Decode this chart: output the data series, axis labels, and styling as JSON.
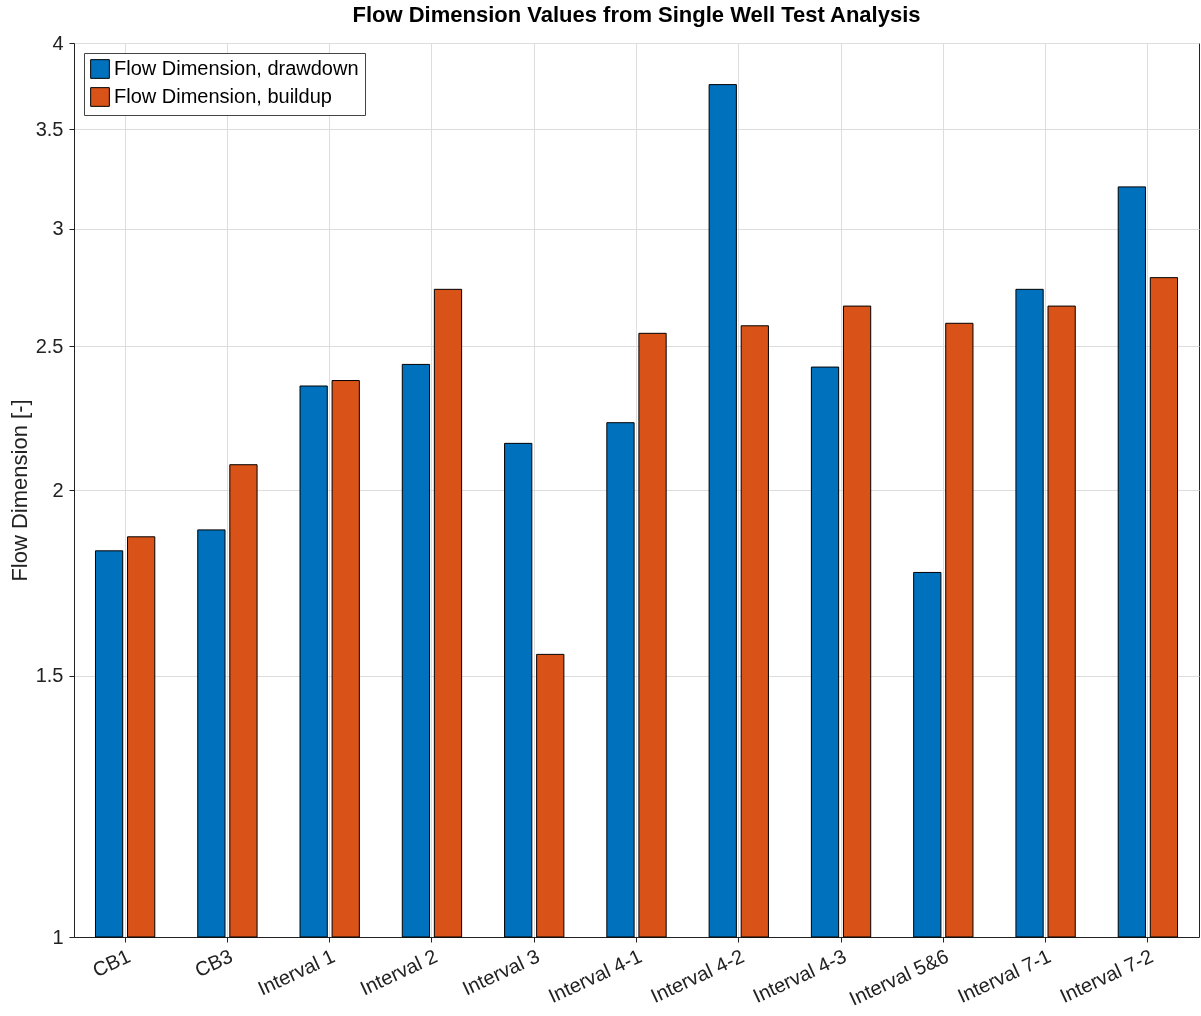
{
  "chart_data": {
    "type": "bar",
    "title": "Flow Dimension Values from Single Well Test Analysis",
    "ylabel": "Flow Dimension [-]",
    "categories": [
      "CB1",
      "CB3",
      "Interval 1",
      "Interval 2",
      "Interval 3",
      "Interval 4-1",
      "Interval 4-2",
      "Interval 4-3",
      "Interval 5&6",
      "Interval 7-1",
      "Interval 7-2"
    ],
    "series": [
      {
        "name": "Flow Dimension, drawdown",
        "color": "#0072bd",
        "values": [
          1.82,
          1.88,
          2.35,
          2.43,
          2.15,
          2.22,
          3.75,
          2.42,
          1.76,
          2.73,
          3.2
        ]
      },
      {
        "name": "Flow Dimension, buildup",
        "color": "#d95319",
        "values": [
          1.86,
          2.08,
          2.37,
          2.73,
          1.55,
          2.55,
          2.58,
          2.66,
          2.59,
          2.66,
          2.78
        ]
      }
    ],
    "log": true,
    "ylim": [
      1,
      4
    ],
    "yticks": [
      1,
      1.5,
      2,
      2.5,
      3,
      3.5,
      4
    ],
    "grid": true,
    "legend": "top left"
  }
}
